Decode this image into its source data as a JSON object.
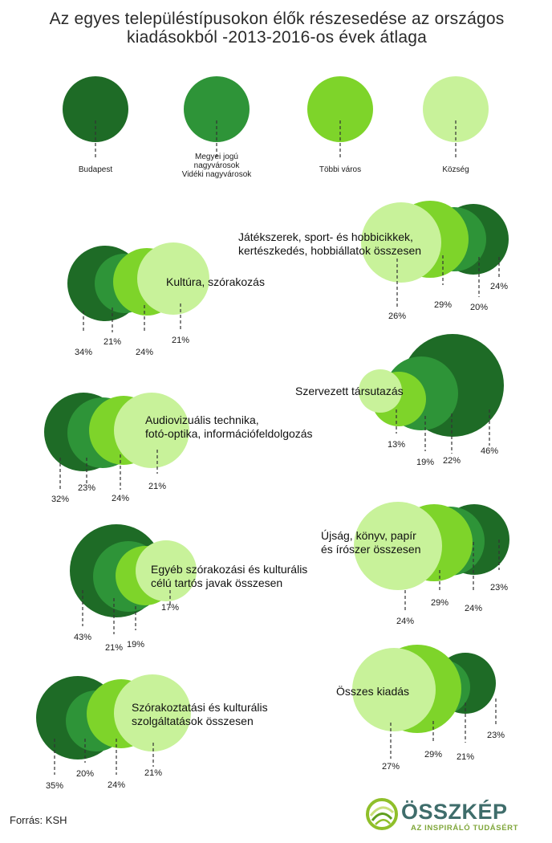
{
  "title": "Az egyes településtípusokon élők részesedése az országos kiadásokból -2013-2016-os évek átlaga",
  "source": "Forrás: KSH",
  "logo": {
    "name": "ÖSSZKÉP",
    "tagline": "AZ INSPIRÁLÓ TUDÁSÉRT"
  },
  "colors": {
    "budapest": "#1e6b26",
    "megyei": "#2e9438",
    "tobbi": "#7ed42a",
    "kozseg": "#c8f29a"
  },
  "legend": [
    {
      "key": "budapest",
      "label": "Budapest"
    },
    {
      "key": "megyei",
      "label": "Megyei jogú nagyvárosok Vidéki nagyvárosok"
    },
    {
      "key": "tobbi",
      "label": "Többi város"
    },
    {
      "key": "kozseg",
      "label": "Község"
    }
  ],
  "chart_data": {
    "type": "bubble-overlap",
    "series": [
      "Budapest",
      "Megyei jogú nagyvárosok Vidéki nagyvárosok",
      "Többi város",
      "Község"
    ],
    "unit": "%",
    "categories": [
      {
        "label": "Kultúra, szórakozás",
        "values": [
          34,
          21,
          24,
          21
        ]
      },
      {
        "label": "Játékszerek, sport- és hobbicikkek, kertészkedés, hobbiállatok összesen",
        "values": [
          24,
          20,
          29,
          26
        ]
      },
      {
        "label": "Szervezett társutazás",
        "values": [
          46,
          22,
          19,
          13
        ]
      },
      {
        "label": "Audiovizuális technika, fotó-optika, információfeldolgozás",
        "values": [
          32,
          23,
          24,
          21
        ]
      },
      {
        "label": "Újság, könyv, papír és írószer összesen",
        "values": [
          23,
          24,
          29,
          24
        ]
      },
      {
        "label": "Egyéb szórakozási és kulturális célú tartós javak összesen",
        "values": [
          43,
          21,
          19,
          17
        ]
      },
      {
        "label": "Összes kiadás",
        "values": [
          23,
          21,
          29,
          27
        ]
      },
      {
        "label": "Szórakoztatási és kulturális szolgáltatások összesen",
        "values": [
          35,
          20,
          24,
          21
        ]
      }
    ]
  }
}
